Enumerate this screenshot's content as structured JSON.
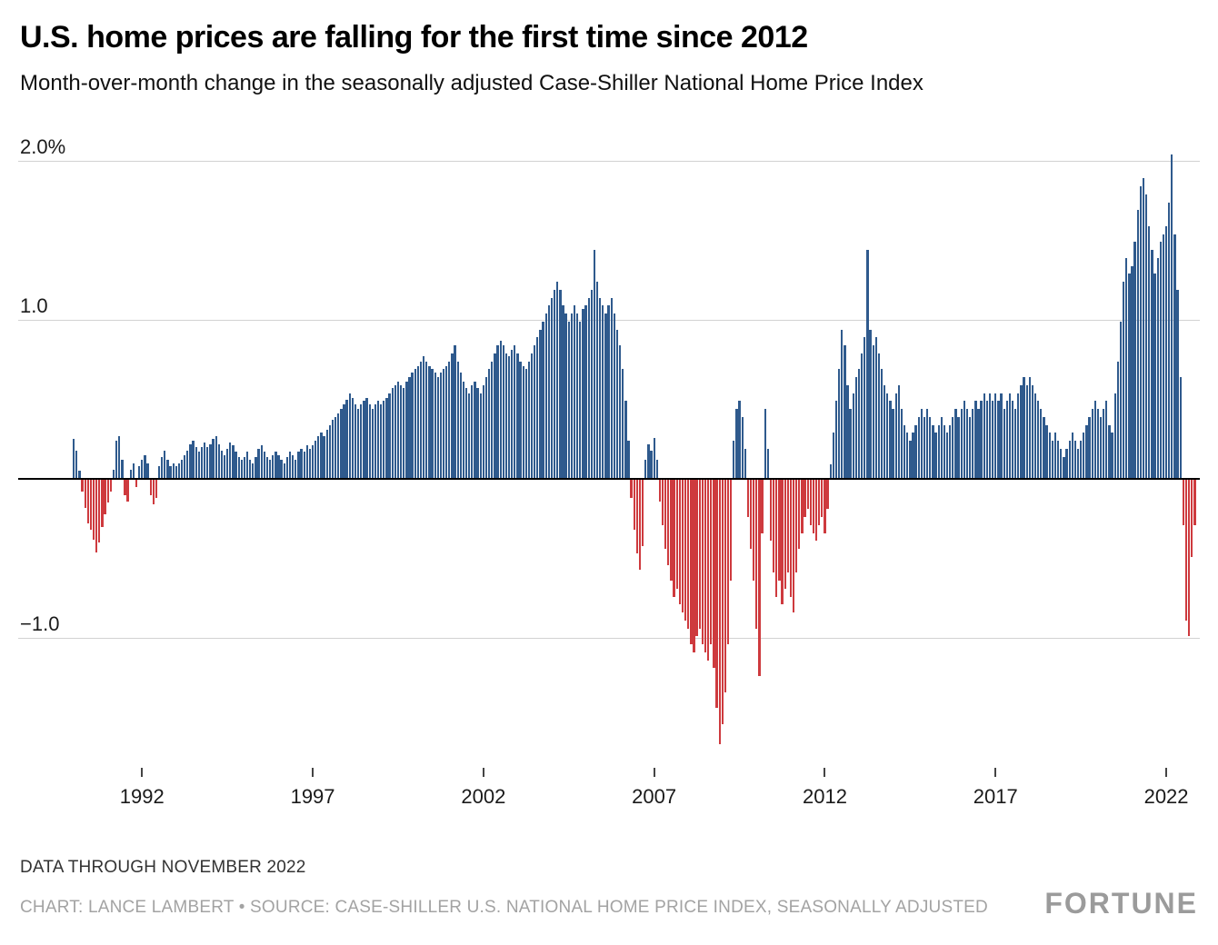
{
  "header": {
    "title": "U.S. home prices are falling for the first time since 2012",
    "subtitle": "Month-over-month change in the seasonally adjusted Case-Shiller National Home Price Index"
  },
  "footer": {
    "note": "DATA THROUGH NOVEMBER 2022",
    "credit": "CHART: LANCE LAMBERT • SOURCE: CASE-SHILLER U.S. NATIONAL HOME PRICE INDEX, SEASONALLY ADJUSTED",
    "brand": "FORTUNE"
  },
  "chart_data": {
    "type": "bar",
    "title": "U.S. home prices are falling for the first time since 2012",
    "subtitle": "Month-over-month change in the seasonally adjusted Case-Shiller National Home Price Index",
    "frequency": "monthly",
    "x_start": "1990-01",
    "x_end": "2022-11",
    "start_year": 1990,
    "x_tick_labels": [
      "1992",
      "1997",
      "2002",
      "2007",
      "2012",
      "2017",
      "2022"
    ],
    "y_ticks": [
      {
        "value": 2.0,
        "label": "2.0%"
      },
      {
        "value": 1.0,
        "label": "1.0"
      },
      {
        "value": -1.0,
        "label": "−1.0"
      }
    ],
    "ylim": [
      -1.8,
      2.1
    ],
    "grid": true,
    "legend": "none",
    "colors": {
      "positive": "#2f5a8d",
      "negative": "#ce3a3e"
    },
    "values": [
      0.25,
      0.18,
      0.05,
      -0.08,
      -0.18,
      -0.28,
      -0.32,
      -0.38,
      -0.46,
      -0.4,
      -0.3,
      -0.22,
      -0.15,
      -0.08,
      0.06,
      0.24,
      0.27,
      0.12,
      -0.1,
      -0.14,
      0.06,
      0.1,
      -0.05,
      0.08,
      0.12,
      0.15,
      0.1,
      -0.1,
      -0.16,
      -0.12,
      0.08,
      0.14,
      0.18,
      0.12,
      0.08,
      0.1,
      0.08,
      0.1,
      0.12,
      0.15,
      0.18,
      0.22,
      0.24,
      0.2,
      0.17,
      0.2,
      0.23,
      0.2,
      0.22,
      0.25,
      0.27,
      0.22,
      0.18,
      0.15,
      0.19,
      0.23,
      0.21,
      0.17,
      0.14,
      0.12,
      0.14,
      0.17,
      0.12,
      0.1,
      0.14,
      0.19,
      0.21,
      0.17,
      0.14,
      0.12,
      0.15,
      0.17,
      0.15,
      0.12,
      0.1,
      0.14,
      0.17,
      0.15,
      0.12,
      0.17,
      0.19,
      0.17,
      0.21,
      0.19,
      0.21,
      0.24,
      0.27,
      0.29,
      0.27,
      0.31,
      0.34,
      0.37,
      0.39,
      0.41,
      0.44,
      0.47,
      0.5,
      0.54,
      0.51,
      0.47,
      0.44,
      0.47,
      0.49,
      0.51,
      0.47,
      0.44,
      0.47,
      0.49,
      0.47,
      0.49,
      0.51,
      0.54,
      0.57,
      0.59,
      0.61,
      0.59,
      0.57,
      0.61,
      0.64,
      0.67,
      0.69,
      0.71,
      0.74,
      0.77,
      0.74,
      0.71,
      0.69,
      0.67,
      0.64,
      0.67,
      0.69,
      0.71,
      0.74,
      0.79,
      0.84,
      0.74,
      0.67,
      0.61,
      0.57,
      0.54,
      0.59,
      0.61,
      0.57,
      0.54,
      0.59,
      0.64,
      0.69,
      0.74,
      0.79,
      0.84,
      0.87,
      0.84,
      0.79,
      0.77,
      0.81,
      0.84,
      0.79,
      0.74,
      0.71,
      0.69,
      0.74,
      0.79,
      0.84,
      0.89,
      0.94,
      0.99,
      1.04,
      1.09,
      1.14,
      1.19,
      1.24,
      1.19,
      1.09,
      1.04,
      0.99,
      1.04,
      1.09,
      1.04,
      0.99,
      1.07,
      1.09,
      1.14,
      1.19,
      1.44,
      1.24,
      1.14,
      1.09,
      1.04,
      1.09,
      1.14,
      1.04,
      0.94,
      0.84,
      0.69,
      0.49,
      0.24,
      -0.12,
      -0.32,
      -0.47,
      -0.57,
      -0.42,
      0.12,
      0.22,
      0.18,
      0.26,
      0.12,
      -0.14,
      -0.29,
      -0.44,
      -0.54,
      -0.64,
      -0.74,
      -0.69,
      -0.79,
      -0.84,
      -0.89,
      -0.94,
      -1.04,
      -1.09,
      -0.99,
      -0.94,
      -1.04,
      -1.09,
      -1.14,
      -1.04,
      -1.19,
      -1.44,
      -1.67,
      -1.54,
      -1.34,
      -1.04,
      -0.64,
      0.24,
      0.44,
      0.49,
      0.39,
      0.19,
      -0.24,
      -0.44,
      -0.64,
      -0.94,
      -1.24,
      -0.34,
      0.44,
      0.19,
      -0.39,
      -0.59,
      -0.74,
      -0.64,
      -0.79,
      -0.69,
      -0.59,
      -0.74,
      -0.84,
      -0.59,
      -0.44,
      -0.34,
      -0.24,
      -0.19,
      -0.29,
      -0.34,
      -0.39,
      -0.29,
      -0.24,
      -0.34,
      -0.19,
      0.09,
      0.29,
      0.49,
      0.69,
      0.94,
      0.84,
      0.59,
      0.44,
      0.54,
      0.64,
      0.69,
      0.79,
      0.89,
      1.44,
      0.94,
      0.84,
      0.89,
      0.79,
      0.69,
      0.59,
      0.54,
      0.49,
      0.44,
      0.54,
      0.59,
      0.44,
      0.34,
      0.29,
      0.24,
      0.29,
      0.34,
      0.39,
      0.44,
      0.39,
      0.44,
      0.39,
      0.34,
      0.29,
      0.34,
      0.39,
      0.34,
      0.29,
      0.34,
      0.39,
      0.44,
      0.39,
      0.44,
      0.49,
      0.44,
      0.39,
      0.44,
      0.49,
      0.44,
      0.49,
      0.54,
      0.49,
      0.54,
      0.49,
      0.54,
      0.49,
      0.54,
      0.44,
      0.49,
      0.54,
      0.49,
      0.44,
      0.54,
      0.59,
      0.64,
      0.59,
      0.64,
      0.59,
      0.54,
      0.49,
      0.44,
      0.39,
      0.34,
      0.29,
      0.24,
      0.29,
      0.24,
      0.19,
      0.14,
      0.19,
      0.24,
      0.29,
      0.24,
      0.19,
      0.24,
      0.29,
      0.34,
      0.39,
      0.44,
      0.49,
      0.44,
      0.39,
      0.44,
      0.49,
      0.34,
      0.29,
      0.54,
      0.74,
      0.99,
      1.24,
      1.39,
      1.29,
      1.34,
      1.49,
      1.69,
      1.84,
      1.89,
      1.79,
      1.59,
      1.44,
      1.29,
      1.39,
      1.49,
      1.54,
      1.59,
      1.74,
      2.04,
      1.54,
      1.19,
      0.64,
      -0.29,
      -0.89,
      -0.99,
      -0.49,
      -0.29
    ]
  }
}
